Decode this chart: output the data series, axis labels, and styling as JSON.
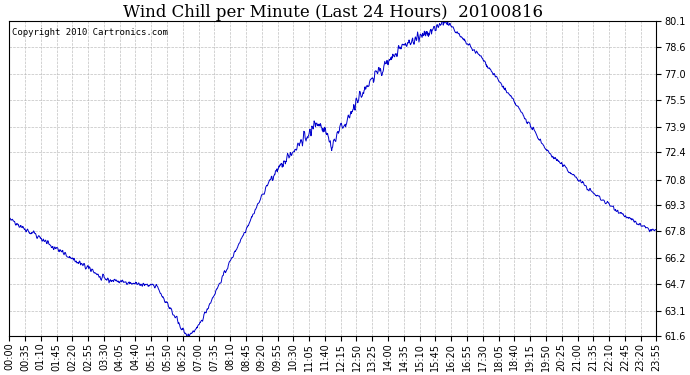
{
  "title": "Wind Chill per Minute (Last 24 Hours)  20100816",
  "copyright": "Copyright 2010 Cartronics.com",
  "line_color": "#0000cc",
  "background_color": "#ffffff",
  "grid_color": "#b0b0b0",
  "yticks": [
    61.6,
    63.1,
    64.7,
    66.2,
    67.8,
    69.3,
    70.8,
    72.4,
    73.9,
    75.5,
    77.0,
    78.6,
    80.1
  ],
  "ylim": [
    61.6,
    80.1
  ],
  "xtick_labels": [
    "00:00",
    "00:35",
    "01:10",
    "01:45",
    "02:20",
    "02:55",
    "03:30",
    "04:05",
    "04:40",
    "05:15",
    "05:50",
    "06:25",
    "07:00",
    "07:35",
    "08:10",
    "08:45",
    "09:20",
    "09:55",
    "10:30",
    "11:05",
    "11:40",
    "12:15",
    "12:50",
    "13:25",
    "14:00",
    "14:35",
    "15:10",
    "15:45",
    "16:20",
    "16:55",
    "17:30",
    "18:05",
    "18:40",
    "19:15",
    "19:50",
    "20:25",
    "21:00",
    "21:35",
    "22:10",
    "22:45",
    "23:20",
    "23:55"
  ],
  "title_fontsize": 12,
  "tick_fontsize": 7,
  "copyright_fontsize": 6.5
}
